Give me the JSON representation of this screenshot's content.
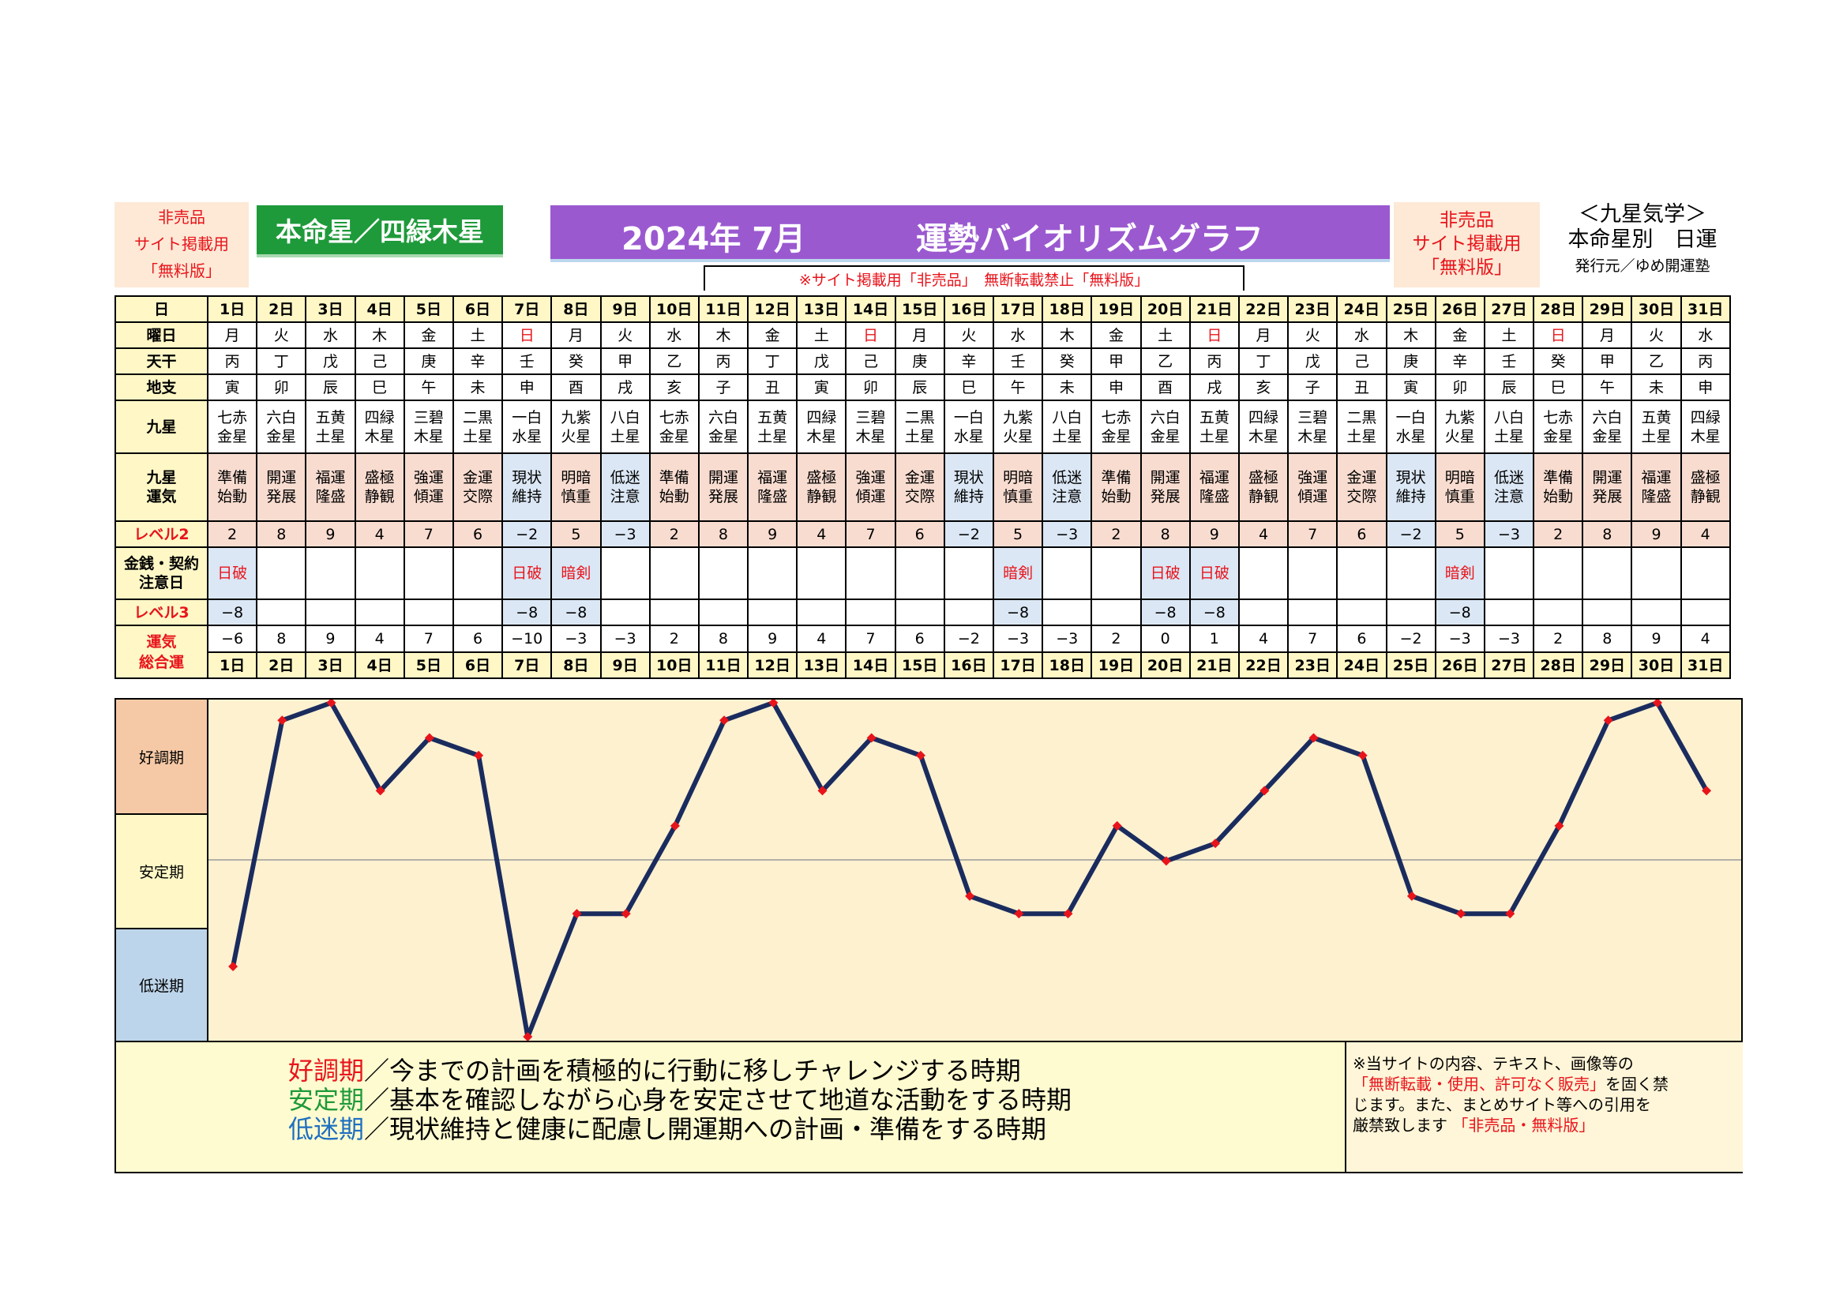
{
  "header": {
    "left_notice": [
      "非売品",
      "サイト掲載用",
      "「無料版」"
    ],
    "honmei": "本命星／四緑木星",
    "title_year_month": "2024年 7月",
    "title_main": "運勢バイオリズムグラフ",
    "right_notice": [
      "非売品",
      "サイト掲載用",
      "「無料版」"
    ],
    "corner_line1": "＜九星気学＞",
    "corner_line2": "本命星別　日運",
    "corner_line3": "発行元／ゆめ開運塾",
    "sub_notice": "※サイト掲載用「非売品」　無断転載禁止「無料版」",
    "colors": {
      "title_bg": "#9b59d0",
      "honmei_bg": "#1e9a3a",
      "line": "#1a2b5e",
      "point": "#e8141b"
    }
  },
  "row_labels": {
    "day": "日",
    "weekday": "曜日",
    "tenkan": "天干",
    "chishi": "地支",
    "kyusei": "九星",
    "unki": [
      "九星",
      "運気"
    ],
    "level2": "レベル2",
    "kinsen": [
      "金銭・契約",
      "注意日"
    ],
    "level3": "レベル3",
    "total": [
      "運気",
      "総合運"
    ]
  },
  "days": [
    "1日",
    "2日",
    "3日",
    "4日",
    "5日",
    "6日",
    "7日",
    "8日",
    "9日",
    "10日",
    "11日",
    "12日",
    "13日",
    "14日",
    "15日",
    "16日",
    "17日",
    "18日",
    "19日",
    "20日",
    "21日",
    "22日",
    "23日",
    "24日",
    "25日",
    "26日",
    "27日",
    "28日",
    "29日",
    "30日",
    "31日"
  ],
  "weekday": [
    "月",
    "火",
    "水",
    "木",
    "金",
    "土",
    "日",
    "月",
    "火",
    "水",
    "木",
    "金",
    "土",
    "日",
    "月",
    "火",
    "水",
    "木",
    "金",
    "土",
    "日",
    "月",
    "火",
    "水",
    "木",
    "金",
    "土",
    "日",
    "月",
    "火",
    "水"
  ],
  "tenkan": [
    "丙",
    "丁",
    "戊",
    "己",
    "庚",
    "辛",
    "壬",
    "癸",
    "甲",
    "乙",
    "丙",
    "丁",
    "戊",
    "己",
    "庚",
    "辛",
    "壬",
    "癸",
    "甲",
    "乙",
    "丙",
    "丁",
    "戊",
    "己",
    "庚",
    "辛",
    "壬",
    "癸",
    "甲",
    "乙",
    "丙"
  ],
  "chishi": [
    "寅",
    "卯",
    "辰",
    "巳",
    "午",
    "未",
    "申",
    "酉",
    "戌",
    "亥",
    "子",
    "丑",
    "寅",
    "卯",
    "辰",
    "巳",
    "午",
    "未",
    "申",
    "酉",
    "戌",
    "亥",
    "子",
    "丑",
    "寅",
    "卯",
    "辰",
    "巳",
    "午",
    "未",
    "申"
  ],
  "kyusei": [
    [
      "七赤",
      "金星"
    ],
    [
      "六白",
      "金星"
    ],
    [
      "五黄",
      "土星"
    ],
    [
      "四緑",
      "木星"
    ],
    [
      "三碧",
      "木星"
    ],
    [
      "二黒",
      "土星"
    ],
    [
      "一白",
      "水星"
    ],
    [
      "九紫",
      "火星"
    ],
    [
      "八白",
      "土星"
    ],
    [
      "七赤",
      "金星"
    ],
    [
      "六白",
      "金星"
    ],
    [
      "五黄",
      "土星"
    ],
    [
      "四緑",
      "木星"
    ],
    [
      "三碧",
      "木星"
    ],
    [
      "二黒",
      "土星"
    ],
    [
      "一白",
      "水星"
    ],
    [
      "九紫",
      "火星"
    ],
    [
      "八白",
      "土星"
    ],
    [
      "七赤",
      "金星"
    ],
    [
      "六白",
      "金星"
    ],
    [
      "五黄",
      "土星"
    ],
    [
      "四緑",
      "木星"
    ],
    [
      "三碧",
      "木星"
    ],
    [
      "二黒",
      "土星"
    ],
    [
      "一白",
      "水星"
    ],
    [
      "九紫",
      "火星"
    ],
    [
      "八白",
      "土星"
    ],
    [
      "七赤",
      "金星"
    ],
    [
      "六白",
      "金星"
    ],
    [
      "五黄",
      "土星"
    ],
    [
      "四緑",
      "木星"
    ]
  ],
  "unki": [
    [
      "準備",
      "始動"
    ],
    [
      "開運",
      "発展"
    ],
    [
      "福運",
      "隆盛"
    ],
    [
      "盛極",
      "静観"
    ],
    [
      "強運",
      "傾運"
    ],
    [
      "金運",
      "交際"
    ],
    [
      "現状",
      "維持"
    ],
    [
      "明暗",
      "慎重"
    ],
    [
      "低迷",
      "注意"
    ],
    [
      "準備",
      "始動"
    ],
    [
      "開運",
      "発展"
    ],
    [
      "福運",
      "隆盛"
    ],
    [
      "盛極",
      "静観"
    ],
    [
      "強運",
      "傾運"
    ],
    [
      "金運",
      "交際"
    ],
    [
      "現状",
      "維持"
    ],
    [
      "明暗",
      "慎重"
    ],
    [
      "低迷",
      "注意"
    ],
    [
      "準備",
      "始動"
    ],
    [
      "開運",
      "発展"
    ],
    [
      "福運",
      "隆盛"
    ],
    [
      "盛極",
      "静観"
    ],
    [
      "強運",
      "傾運"
    ],
    [
      "金運",
      "交際"
    ],
    [
      "現状",
      "維持"
    ],
    [
      "明暗",
      "慎重"
    ],
    [
      "低迷",
      "注意"
    ],
    [
      "準備",
      "始動"
    ],
    [
      "開運",
      "発展"
    ],
    [
      "福運",
      "隆盛"
    ],
    [
      "盛極",
      "静観"
    ]
  ],
  "level2": [
    "2",
    "8",
    "9",
    "4",
    "7",
    "6",
    "−2",
    "5",
    "−3",
    "2",
    "8",
    "9",
    "4",
    "7",
    "6",
    "−2",
    "5",
    "−3",
    "2",
    "8",
    "9",
    "4",
    "7",
    "6",
    "−2",
    "5",
    "−3",
    "2",
    "8",
    "9",
    "4"
  ],
  "kinsen": [
    "日破",
    "",
    "",
    "",
    "",
    "",
    "日破",
    "暗剣",
    "",
    "",
    "",
    "",
    "",
    "",
    "",
    "",
    "暗剣",
    "",
    "",
    "日破",
    "日破",
    "",
    "",
    "",
    "",
    "暗剣",
    "",
    "",
    "",
    "",
    ""
  ],
  "level3": [
    "−8",
    "",
    "",
    "",
    "",
    "",
    "−8",
    "−8",
    "",
    "",
    "",
    "",
    "",
    "",
    "",
    "",
    "−8",
    "",
    "",
    "−8",
    "−8",
    "",
    "",
    "",
    "",
    "−8",
    "",
    "",
    "",
    "",
    ""
  ],
  "total": [
    "−6",
    "8",
    "9",
    "4",
    "7",
    "6",
    "−10",
    "−3",
    "−3",
    "2",
    "8",
    "9",
    "4",
    "7",
    "6",
    "−2",
    "−3",
    "−3",
    "2",
    "0",
    "1",
    "4",
    "7",
    "6",
    "−2",
    "−3",
    "−3",
    "2",
    "8",
    "9",
    "4"
  ],
  "zones": {
    "good": "好調期",
    "stable": "安定期",
    "low": "低迷期"
  },
  "legend": {
    "good_term": "好調期",
    "good_text": "／今までの計画を積極的に行動に移しチャレンジする時期",
    "stable_term": "安定期",
    "stable_text": "／基本を確認しながら心身を安定させて地道な活動をする時期",
    "low_term": "低迷期",
    "low_text": "／現状維持と健康に配慮し開運期への計画・準備をする時期",
    "colors": {
      "good": "#e8141b",
      "stable": "#1e9a3a",
      "low": "#1f6fc0"
    }
  },
  "notice": {
    "line1": "※当サイトの内容、テキスト、画像等の",
    "line2_red": "「無断転載・使用、許可なく販売」",
    "line2_black": "を固く禁",
    "line3": "じます。また、まとめサイト等への引用を",
    "line4_black": "厳禁致します",
    "line4_red": "「非売品・無料版」"
  },
  "chart_data": {
    "type": "line",
    "x": [
      "1日",
      "2日",
      "3日",
      "4日",
      "5日",
      "6日",
      "7日",
      "8日",
      "9日",
      "10日",
      "11日",
      "12日",
      "13日",
      "14日",
      "15日",
      "16日",
      "17日",
      "18日",
      "19日",
      "20日",
      "21日",
      "22日",
      "23日",
      "24日",
      "25日",
      "26日",
      "27日",
      "28日",
      "29日",
      "30日",
      "31日"
    ],
    "series": [
      {
        "values": [
          -6,
          8,
          9,
          4,
          7,
          6,
          -10,
          -3,
          -3,
          2,
          8,
          9,
          4,
          7,
          6,
          -2,
          -3,
          -3,
          2,
          0,
          1,
          4,
          7,
          6,
          -2,
          -3,
          -3,
          2,
          8,
          9,
          4
        ]
      }
    ],
    "ylim": [
      -10,
      9
    ],
    "bands": [
      "好調期",
      "安定期",
      "低迷期"
    ],
    "grid": false
  }
}
